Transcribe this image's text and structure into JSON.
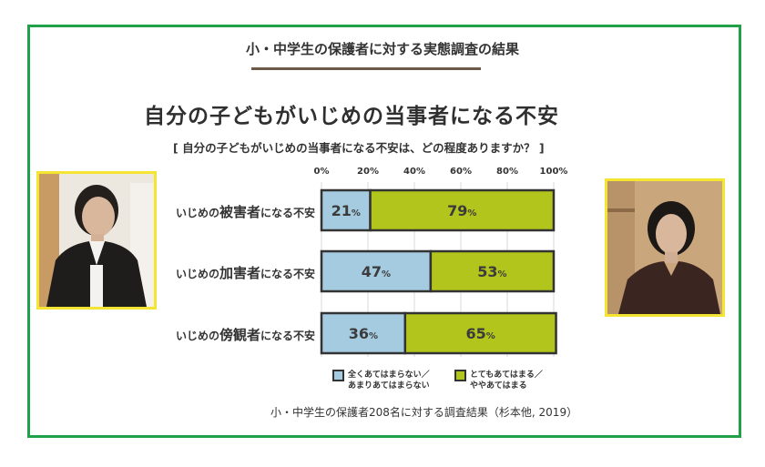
{
  "header": {
    "title": "小・中学生の保護者に対する実態調査の結果"
  },
  "main_title": "自分の子どもがいじめの当事者になる不安",
  "question": "[ 自分の子どもがいじめの当事者になる不安は、どの程度ありますか？ ]",
  "source": "小・中学生の保護者208名に対する調査結果（杉本他, 2019）",
  "categories": [
    {
      "prefix": "いじめの",
      "em": "被害者",
      "suffix": "になる不安"
    },
    {
      "prefix": "いじめの",
      "em": "加害者",
      "suffix": "になる不安"
    },
    {
      "prefix": "いじめの",
      "em": "傍観者",
      "suffix": "になる不安"
    }
  ],
  "legend": [
    {
      "line1": "全くあてはまらない／",
      "line2": "あまりあてはまらない",
      "color": "#a5cbe0"
    },
    {
      "line1": "とてもあてはまる／",
      "line2": "ややあてはまる",
      "color": "#b2c51c"
    }
  ],
  "chart_data": {
    "type": "bar",
    "orientation": "horizontal",
    "stacked": true,
    "categories": [
      "いじめの被害者になる不安",
      "いじめの加害者になる不安",
      "いじめの傍観者になる不安"
    ],
    "series": [
      {
        "name": "全くあてはまらない／あまりあてはまらない",
        "values": [
          21,
          47,
          36
        ],
        "color": "#a5cbe0"
      },
      {
        "name": "とてもあてはまる／ややあてはまる",
        "values": [
          79,
          53,
          65
        ],
        "color": "#b2c51c"
      }
    ],
    "xlim": [
      0,
      100
    ],
    "xticks": [
      "0%",
      "20%",
      "40%",
      "60%",
      "80%",
      "100%"
    ],
    "value_suffix": "%",
    "legend_position": "bottom"
  }
}
